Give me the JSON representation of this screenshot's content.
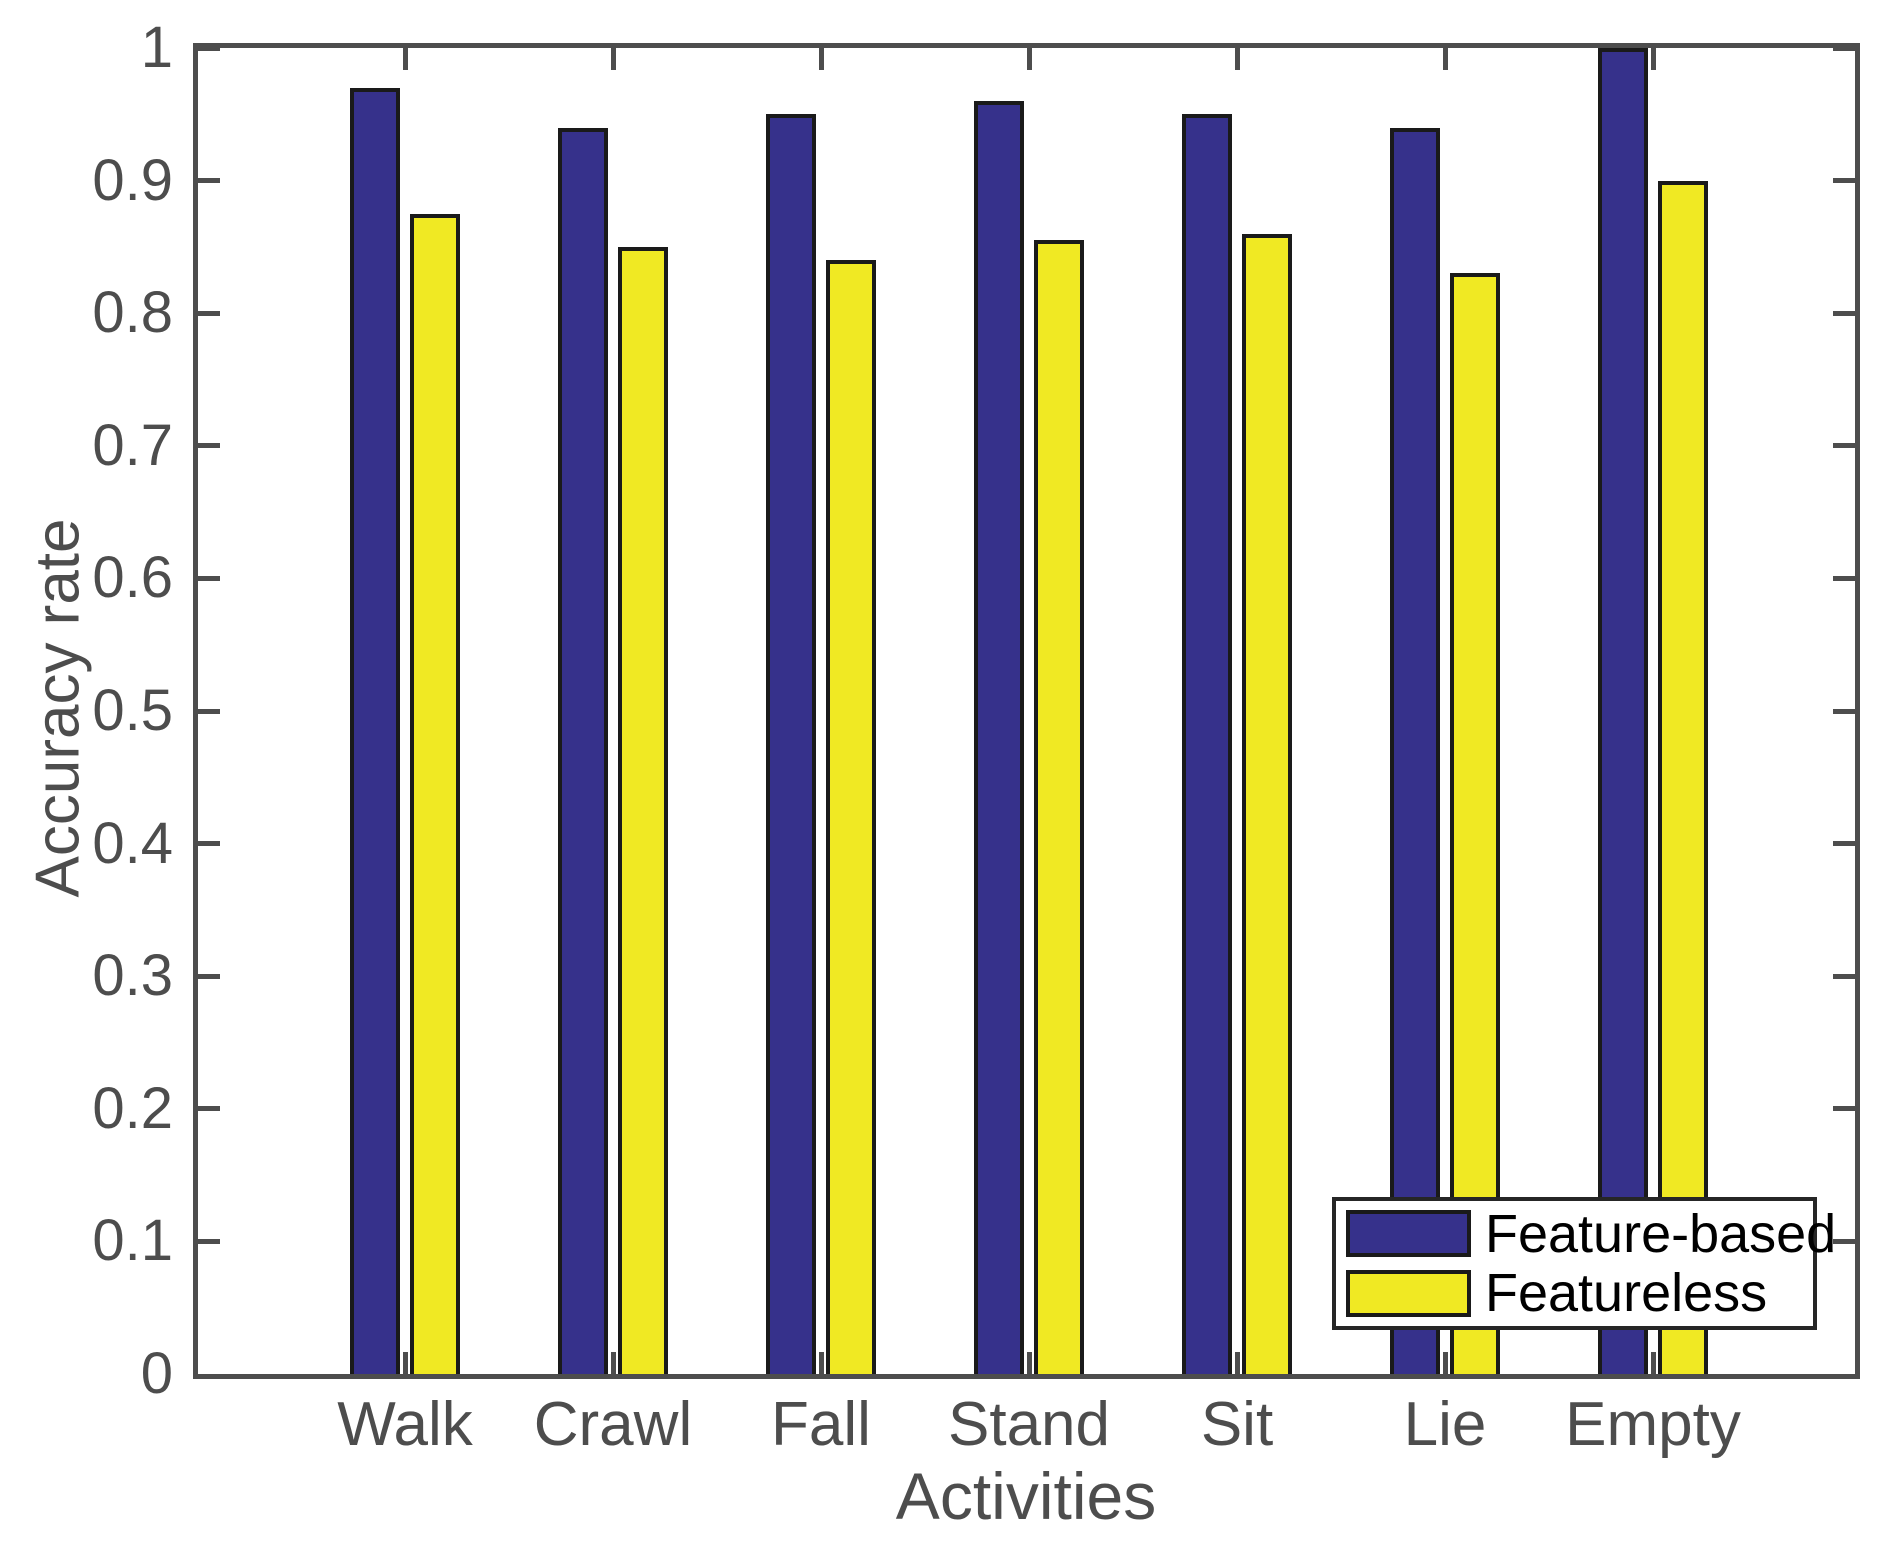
{
  "chart_data": {
    "type": "bar",
    "title": "",
    "xlabel": "Activities",
    "ylabel": "Accuracy rate",
    "categories": [
      "Walk",
      "Crawl",
      "Fall",
      "Stand",
      "Sit",
      "Lie",
      "Empty"
    ],
    "series": [
      {
        "name": "Feature-based",
        "color": "#36318B",
        "values": [
          0.97,
          0.94,
          0.95,
          0.96,
          0.95,
          0.94,
          1.0
        ]
      },
      {
        "name": "Featureless",
        "color": "#F0E923",
        "values": [
          0.875,
          0.85,
          0.84,
          0.855,
          0.86,
          0.83,
          0.9
        ]
      }
    ],
    "ylim": [
      0,
      1
    ],
    "ytick_values": [
      0,
      0.1,
      0.2,
      0.3,
      0.4,
      0.5,
      0.6,
      0.7,
      0.8,
      0.9,
      1
    ],
    "ytick_labels": [
      "0",
      "0.1",
      "0.2",
      "0.3",
      "0.4",
      "0.5",
      "0.6",
      "0.7",
      "0.8",
      "0.9",
      "1"
    ],
    "legend_position": "bottom-right",
    "grid": false,
    "colors": {
      "axis": "#4d4d4d",
      "bar_edge": "#1a1a1a",
      "legend_border": "#262626",
      "legend_text": "#000000",
      "background": "#ffffff"
    }
  }
}
